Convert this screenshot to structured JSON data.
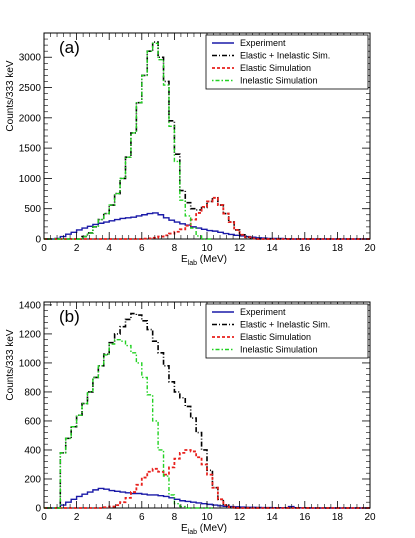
{
  "colors": {
    "experiment": "#1a1aa8",
    "elastic_inelastic": "#000000",
    "elastic": "#e8211d",
    "inelastic": "#22d122"
  },
  "chart_data": [
    {
      "type": "line",
      "panel_label": "(a)",
      "xlabel_main": "E",
      "xlabel_sub": "lab",
      "xlabel_unit": " (MeV)",
      "ylabel": "Counts/333 keV",
      "xlim": [
        0,
        20
      ],
      "ylim": [
        0,
        3400
      ],
      "xticks": [
        "0",
        "2",
        "4",
        "6",
        "8",
        "10",
        "12",
        "14",
        "16",
        "18",
        "20"
      ],
      "yticks": [
        "0",
        "500",
        "1000",
        "1500",
        "2000",
        "2500",
        "3000"
      ],
      "grid": false,
      "legend_position": "top-right",
      "series": [
        {
          "name": "Experiment",
          "color_key": "experiment",
          "style": "solid",
          "x": [
            0,
            0.333,
            0.667,
            1,
            1.333,
            1.667,
            2,
            2.333,
            2.667,
            3,
            3.333,
            3.667,
            4,
            4.333,
            4.667,
            5,
            5.333,
            5.667,
            6,
            6.333,
            6.667,
            7,
            7.333,
            7.667,
            8,
            8.333,
            8.667,
            9,
            9.333,
            9.667,
            10,
            10.333,
            10.667,
            11,
            11.333,
            11.667,
            12,
            12.333,
            12.667,
            13,
            13.333,
            13.667,
            14,
            14.333,
            14.667,
            15,
            15.333,
            15.667,
            16,
            16.333,
            16.667,
            17,
            17.333,
            17.667,
            18,
            18.333,
            18.667,
            19,
            19.333,
            19.667,
            20
          ],
          "y": [
            0,
            0,
            10,
            40,
            80,
            110,
            150,
            180,
            210,
            240,
            260,
            280,
            300,
            320,
            340,
            350,
            360,
            380,
            400,
            420,
            430,
            400,
            350,
            310,
            280,
            250,
            230,
            200,
            180,
            160,
            140,
            130,
            110,
            90,
            75,
            60,
            50,
            40,
            30,
            20,
            15,
            10,
            10,
            10,
            5,
            0,
            0,
            0,
            0,
            0,
            0,
            0,
            0,
            0,
            0,
            0,
            0,
            0,
            0,
            0,
            0
          ]
        },
        {
          "name": "Elastic + Inelastic Sim.",
          "color_key": "elastic_inelastic",
          "style": "dashdot",
          "x": [
            0,
            0.333,
            0.667,
            1,
            1.333,
            1.667,
            2,
            2.333,
            2.667,
            3,
            3.333,
            3.667,
            4,
            4.333,
            4.667,
            5,
            5.333,
            5.667,
            6,
            6.333,
            6.667,
            7,
            7.333,
            7.667,
            8,
            8.333,
            8.667,
            9,
            9.333,
            9.667,
            10,
            10.333,
            10.667,
            11,
            11.333,
            11.667,
            12,
            12.333,
            12.667,
            13,
            13.333,
            13.667,
            14,
            14.333,
            14.667,
            15,
            15.333,
            15.667,
            16,
            16.333,
            16.667,
            17,
            17.333,
            17.667,
            18,
            18.333,
            18.667,
            19,
            19.333,
            19.667,
            20
          ],
          "y": [
            0,
            0,
            0,
            0,
            0,
            0,
            0,
            40,
            100,
            200,
            320,
            420,
            560,
            750,
            1000,
            1350,
            1750,
            2250,
            2700,
            3100,
            3250,
            3000,
            2600,
            1950,
            1400,
            800,
            600,
            500,
            480,
            520,
            620,
            680,
            560,
            420,
            280,
            150,
            70,
            30,
            10,
            0,
            0,
            0,
            0,
            0,
            0,
            0,
            0,
            0,
            0,
            0,
            0,
            0,
            0,
            0,
            0,
            0,
            0,
            0,
            0,
            0,
            0
          ]
        },
        {
          "name": "Elastic Simulation",
          "color_key": "elastic",
          "style": "dashed",
          "x": [
            0,
            0.333,
            0.667,
            1,
            1.333,
            1.667,
            2,
            2.333,
            2.667,
            3,
            3.333,
            3.667,
            4,
            4.333,
            4.667,
            5,
            5.333,
            5.667,
            6,
            6.333,
            6.667,
            7,
            7.333,
            7.667,
            8,
            8.333,
            8.667,
            9,
            9.333,
            9.667,
            10,
            10.333,
            10.667,
            11,
            11.333,
            11.667,
            12,
            12.333,
            12.667,
            13,
            13.333,
            13.667,
            14,
            14.333,
            14.667,
            15,
            15.333,
            15.667,
            16,
            16.333,
            16.667,
            17,
            17.333,
            17.667,
            18,
            18.333,
            18.667,
            19,
            19.333,
            19.667,
            20
          ],
          "y": [
            0,
            0,
            0,
            0,
            0,
            0,
            0,
            0,
            0,
            0,
            0,
            0,
            0,
            0,
            0,
            0,
            0,
            0,
            5,
            10,
            20,
            40,
            60,
            90,
            120,
            160,
            220,
            320,
            430,
            530,
            620,
            680,
            560,
            420,
            280,
            150,
            70,
            30,
            10,
            0,
            0,
            0,
            0,
            0,
            0,
            0,
            0,
            0,
            0,
            0,
            0,
            0,
            0,
            0,
            0,
            0,
            0,
            0,
            0,
            0,
            0
          ]
        },
        {
          "name": "Inelastic Simulation",
          "color_key": "inelastic",
          "style": "dotdash",
          "x": [
            0,
            0.333,
            0.667,
            1,
            1.333,
            1.667,
            2,
            2.333,
            2.667,
            3,
            3.333,
            3.667,
            4,
            4.333,
            4.667,
            5,
            5.333,
            5.667,
            6,
            6.333,
            6.667,
            7,
            7.333,
            7.667,
            8,
            8.333,
            8.667,
            9,
            9.333,
            9.667,
            10
          ],
          "y": [
            0,
            0,
            0,
            0,
            0,
            0,
            0,
            40,
            100,
            200,
            320,
            420,
            560,
            750,
            1000,
            1350,
            1750,
            2250,
            2700,
            3100,
            3230,
            2960,
            2540,
            1860,
            1280,
            640,
            380,
            180,
            50,
            0,
            0
          ]
        }
      ]
    },
    {
      "type": "line",
      "panel_label": "(b)",
      "xlabel_main": "E",
      "xlabel_sub": "lab",
      "xlabel_unit": " (MeV)",
      "ylabel": "Counts/333 keV",
      "xlim": [
        0,
        20
      ],
      "ylim": [
        0,
        1420
      ],
      "xticks": [
        "0",
        "2",
        "4",
        "6",
        "8",
        "10",
        "12",
        "14",
        "16",
        "18",
        "20"
      ],
      "yticks": [
        "0",
        "200",
        "400",
        "600",
        "800",
        "1000",
        "1200",
        "1400"
      ],
      "grid": false,
      "legend_position": "top-right",
      "series": [
        {
          "name": "Experiment",
          "color_key": "experiment",
          "style": "solid",
          "x": [
            0,
            0.333,
            0.667,
            1,
            1.333,
            1.667,
            2,
            2.333,
            2.667,
            3,
            3.333,
            3.667,
            4,
            4.333,
            4.667,
            5,
            5.333,
            5.667,
            6,
            6.333,
            6.667,
            7,
            7.333,
            7.667,
            8,
            8.333,
            8.667,
            9,
            9.333,
            9.667,
            10,
            10.333,
            10.667,
            11,
            11.333,
            11.667,
            12,
            12.333,
            12.667,
            13,
            13.333,
            13.667,
            14,
            14.333,
            14.667,
            15,
            15.333,
            15.667,
            16,
            16.333,
            16.667,
            17,
            17.333,
            17.667,
            18,
            18.333,
            18.667,
            19,
            19.333,
            19.667,
            20
          ],
          "y": [
            0,
            0,
            0,
            20,
            40,
            60,
            80,
            95,
            110,
            125,
            135,
            130,
            120,
            115,
            110,
            105,
            100,
            100,
            95,
            90,
            90,
            85,
            80,
            70,
            60,
            50,
            45,
            40,
            35,
            30,
            25,
            20,
            15,
            12,
            10,
            8,
            6,
            5,
            5,
            4,
            3,
            3,
            2,
            2,
            2,
            10,
            2,
            1,
            1,
            0,
            0,
            0,
            0,
            0,
            0,
            0,
            0,
            0,
            0,
            0,
            0
          ]
        },
        {
          "name": "Elastic + Inelastic Sim.",
          "color_key": "elastic_inelastic",
          "style": "dashdot",
          "x": [
            0,
            0.333,
            0.667,
            1,
            1.333,
            1.667,
            2,
            2.333,
            2.667,
            3,
            3.333,
            3.667,
            4,
            4.333,
            4.667,
            5,
            5.333,
            5.667,
            6,
            6.333,
            6.667,
            7,
            7.333,
            7.667,
            8,
            8.333,
            8.667,
            9,
            9.333,
            9.667,
            10,
            10.333,
            10.667,
            11,
            11.333,
            11.667,
            12,
            12.333,
            12.667,
            13,
            13.333,
            13.667,
            14,
            14.333,
            14.667,
            15,
            15.333,
            15.667,
            16,
            16.333,
            16.667,
            17,
            17.333,
            17.667,
            18,
            18.333,
            18.667,
            19,
            19.333,
            19.667,
            20
          ],
          "y": [
            0,
            0,
            0,
            380,
            480,
            560,
            640,
            720,
            800,
            900,
            980,
            1060,
            1140,
            1200,
            1250,
            1300,
            1340,
            1330,
            1290,
            1230,
            1150,
            1070,
            980,
            870,
            800,
            760,
            700,
            620,
            520,
            400,
            260,
            140,
            60,
            20,
            5,
            0,
            0,
            0,
            0,
            0,
            0,
            0,
            0,
            0,
            0,
            0,
            0,
            0,
            0,
            0,
            0,
            0,
            0,
            0,
            0,
            0,
            0,
            0,
            0,
            0,
            0
          ]
        },
        {
          "name": "Elastic Simulation",
          "color_key": "elastic",
          "style": "dashed",
          "x": [
            0,
            0.333,
            0.667,
            1,
            1.333,
            1.667,
            2,
            2.333,
            2.667,
            3,
            3.333,
            3.667,
            4,
            4.333,
            4.667,
            5,
            5.333,
            5.667,
            6,
            6.333,
            6.667,
            7,
            7.333,
            7.667,
            8,
            8.333,
            8.667,
            9,
            9.333,
            9.667,
            10,
            10.333,
            10.667,
            11,
            11.333,
            11.667,
            12,
            12.333,
            12.667,
            13,
            13.333,
            13.667,
            14,
            14.333,
            14.667,
            15,
            15.333,
            15.667,
            16,
            16.333,
            16.667,
            17,
            17.333,
            17.667,
            18,
            18.333,
            18.667,
            19,
            19.333,
            19.667,
            20
          ],
          "y": [
            0,
            0,
            0,
            0,
            0,
            0,
            0,
            0,
            0,
            0,
            0,
            5,
            10,
            20,
            40,
            70,
            110,
            160,
            210,
            250,
            270,
            250,
            230,
            280,
            340,
            380,
            400,
            390,
            350,
            300,
            230,
            140,
            60,
            20,
            5,
            0,
            0,
            0,
            0,
            0,
            0,
            0,
            0,
            0,
            0,
            0,
            0,
            0,
            0,
            0,
            0,
            0,
            0,
            0,
            0,
            0,
            0,
            0,
            0,
            0,
            0
          ]
        },
        {
          "name": "Inelastic Simulation",
          "color_key": "inelastic",
          "style": "dotdash",
          "x": [
            0,
            0.333,
            0.667,
            1,
            1.333,
            1.667,
            2,
            2.333,
            2.667,
            3,
            3.333,
            3.667,
            4,
            4.333,
            4.667,
            5,
            5.333,
            5.667,
            6,
            6.333,
            6.667,
            7,
            7.333,
            7.667,
            8,
            8.333,
            8.667,
            9,
            9.333,
            9.667,
            10
          ],
          "y": [
            0,
            0,
            0,
            380,
            480,
            560,
            640,
            720,
            800,
            900,
            980,
            1055,
            1130,
            1160,
            1150,
            1120,
            1070,
            1000,
            900,
            780,
            600,
            400,
            220,
            90,
            30,
            10,
            0,
            0,
            0,
            0,
            0
          ]
        }
      ]
    }
  ]
}
